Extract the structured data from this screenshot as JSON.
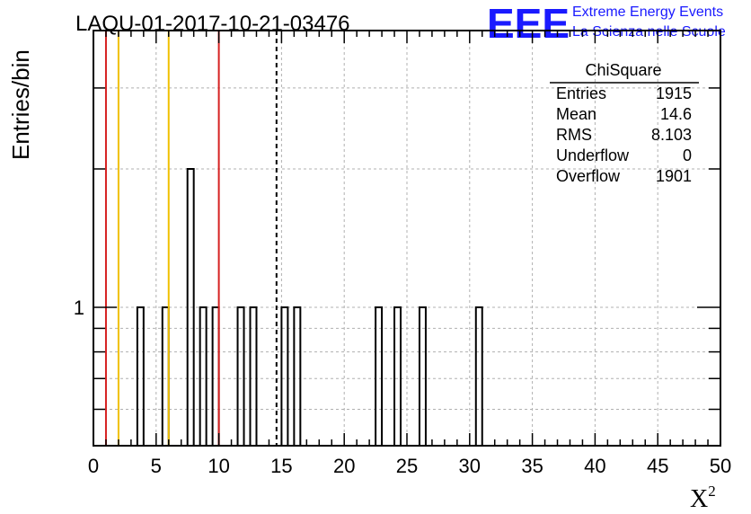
{
  "chart_data": {
    "type": "bar",
    "title": "LAQU-01-2017-10-21-03476",
    "xlabel": "X",
    "xlabel_sup": "2",
    "ylabel": "Entries/bin",
    "xlim": [
      0,
      50
    ],
    "ylim": [
      0.5,
      4
    ],
    "y_scale": "log",
    "grid": true,
    "x_ticks": [
      "0",
      "5",
      "10",
      "15",
      "20",
      "25",
      "30",
      "35",
      "40",
      "45",
      "50"
    ],
    "y_ticks": [
      "1"
    ],
    "bin_width": 0.5,
    "bins": [
      {
        "x": 3.5,
        "value": 1
      },
      {
        "x": 5.5,
        "value": 1
      },
      {
        "x": 7.5,
        "value": 2
      },
      {
        "x": 8.5,
        "value": 1
      },
      {
        "x": 9.5,
        "value": 1
      },
      {
        "x": 11.5,
        "value": 1
      },
      {
        "x": 12.5,
        "value": 1
      },
      {
        "x": 15.0,
        "value": 1
      },
      {
        "x": 16.0,
        "value": 1
      },
      {
        "x": 22.5,
        "value": 1
      },
      {
        "x": 24.0,
        "value": 1
      },
      {
        "x": 26.0,
        "value": 1
      },
      {
        "x": 30.5,
        "value": 1
      }
    ],
    "vlines": [
      {
        "x": 1,
        "color": "#d62020",
        "style": "solid"
      },
      {
        "x": 2,
        "color": "#f0c000",
        "style": "solid"
      },
      {
        "x": 6,
        "color": "#f0c000",
        "style": "solid"
      },
      {
        "x": 10,
        "color": "#d62020",
        "style": "solid"
      },
      {
        "x": 14.6,
        "color": "#000000",
        "style": "dashed"
      }
    ],
    "stats_box": {
      "title": "ChiSquare",
      "rows": [
        {
          "label": "Entries",
          "value": "1915"
        },
        {
          "label": "Mean",
          "value": "14.6"
        },
        {
          "label": "RMS",
          "value": "8.103"
        },
        {
          "label": "Underflow",
          "value": "0"
        },
        {
          "label": "Overflow",
          "value": "1901"
        }
      ]
    }
  },
  "logo": {
    "mark": "EEE",
    "line1": "Extreme Energy Events",
    "line2": "La Scienza nelle Scuole",
    "color": "#1a1aff"
  }
}
